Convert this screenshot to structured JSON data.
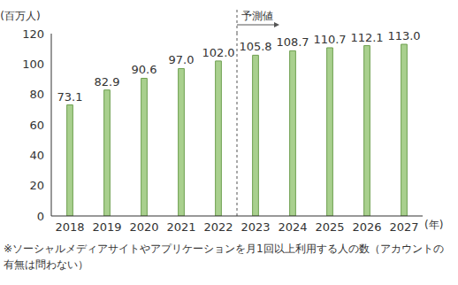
{
  "chart_data": {
    "type": "bar",
    "categories": [
      "2018",
      "2019",
      "2020",
      "2021",
      "2022",
      "2023",
      "2024",
      "2025",
      "2026",
      "2027"
    ],
    "values": [
      73.1,
      82.9,
      90.6,
      97.0,
      102.0,
      105.8,
      108.7,
      110.7,
      112.1,
      113.0
    ],
    "value_labels": [
      "73.1",
      "82.9",
      "90.6",
      "97.0",
      "102.0",
      "105.8",
      "108.7",
      "110.7",
      "112.1",
      "113.0"
    ],
    "color": "#a9d08e",
    "y_label": "(百万人)",
    "x_label": "(年)",
    "ylim": [
      0,
      120
    ],
    "yticks": [
      0,
      20,
      40,
      60,
      80,
      100,
      120
    ],
    "grid": false,
    "data_labels": true,
    "annotations": [
      {
        "text": "予測値",
        "from": "2023"
      }
    ],
    "note": "※ソーシャルメディアサイトやアプリケーションを月1回以上利用する人の数（アカウントの有無は問わない）"
  }
}
